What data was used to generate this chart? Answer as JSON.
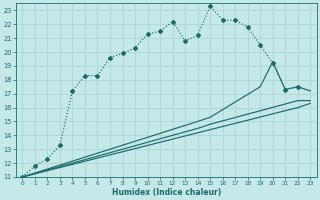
{
  "xlabel": "Humidex (Indice chaleur)",
  "ylabel": "",
  "bg_color": "#c5e8e8",
  "grid_color": "#aed6d6",
  "line_color": "#1a6b6b",
  "xlim": [
    -0.5,
    23.5
  ],
  "ylim": [
    11,
    23.5
  ],
  "xticks": [
    0,
    1,
    2,
    3,
    4,
    5,
    6,
    7,
    8,
    9,
    10,
    11,
    12,
    13,
    14,
    15,
    16,
    17,
    18,
    19,
    20,
    21,
    22,
    23
  ],
  "yticks": [
    11,
    12,
    13,
    14,
    15,
    16,
    17,
    18,
    19,
    20,
    21,
    22,
    23
  ],
  "series1_x": [
    0,
    1,
    2,
    3,
    4,
    5,
    6,
    7,
    8,
    9,
    10,
    11,
    12,
    13,
    14,
    15,
    16,
    17,
    18,
    19,
    20,
    21,
    22
  ],
  "series1_y": [
    11,
    11.8,
    12.3,
    13.3,
    17.2,
    18.3,
    18.3,
    19.6,
    19.9,
    20.3,
    21.3,
    21.5,
    22.2,
    20.8,
    21.2,
    23.3,
    22.3,
    22.3,
    21.8,
    20.5,
    19.2,
    17.3,
    17.5
  ],
  "series2_x": [
    0,
    14,
    15,
    19,
    20,
    21,
    22,
    23
  ],
  "series2_y": [
    11,
    15.0,
    15.3,
    17.5,
    19.3,
    17.3,
    17.5,
    17.2
  ],
  "series3_x": [
    0,
    14,
    15,
    22,
    23
  ],
  "series3_y": [
    11,
    14.5,
    14.8,
    16.5,
    16.5
  ],
  "series4_x": [
    0,
    22,
    23
  ],
  "series4_y": [
    11,
    16.0,
    16.3
  ]
}
